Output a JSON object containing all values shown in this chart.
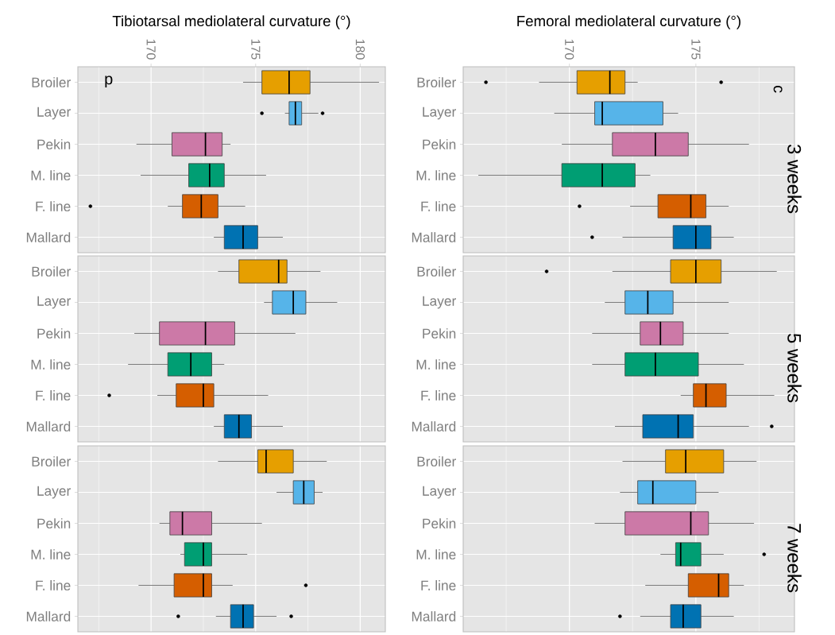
{
  "chart_data": [
    {
      "type": "box",
      "xlabel": "Tibiotarsal mediolateral curvature (°)",
      "orientation": "horizontal",
      "grid": true,
      "xlim": [
        166.5,
        181.2
      ],
      "xticks": [
        {
          "value": 167.5,
          "label": null
        },
        170,
        {
          "value": 172.5,
          "label": null
        },
        175,
        {
          "value": 177.5,
          "label": null
        },
        180
      ],
      "annotations": [
        "d"
      ],
      "categories": [
        "Broiler",
        "Layer",
        "Pekin",
        "M. line",
        "F. line",
        "Mallard"
      ],
      "colors": [
        "#e69f00",
        "#56b4e9",
        "#cc79a7",
        "#009e73",
        "#d55e00",
        "#0072b2"
      ],
      "boxes": [
        {
          "low": 174.4,
          "q1": 175.3,
          "median": 176.6,
          "q3": 177.6,
          "high": 180.9
        },
        {
          "low": 176.4,
          "q1": 176.6,
          "median": 176.9,
          "q3": 177.2,
          "high": 178.0,
          "outliers": [
            175.3,
            178.2
          ]
        },
        {
          "low": 169.3,
          "q1": 171.0,
          "median": 172.6,
          "q3": 173.4,
          "high": 173.8
        },
        {
          "low": 169.5,
          "q1": 171.8,
          "median": 172.8,
          "q3": 173.5,
          "high": 175.5
        },
        {
          "low": 170.8,
          "q1": 171.5,
          "median": 172.4,
          "q3": 173.2,
          "high": 174.5,
          "outliers": [
            167.1
          ]
        },
        {
          "low": 173.0,
          "q1": 173.5,
          "median": 174.4,
          "q3": 175.1,
          "high": 176.3
        }
      ]
    },
    {
      "type": "box",
      "xlabel": "Femoral mediolateral curvature (°)",
      "title": "3 weeks",
      "orientation": "horizontal",
      "grid": true,
      "xlim": [
        165.8,
        178.9
      ],
      "xticks": [
        {
          "value": 167.5,
          "label": null
        },
        170,
        {
          "value": 172.5,
          "label": null
        },
        175,
        {
          "value": 177.5,
          "label": null
        }
      ],
      "annotations": [
        "c"
      ],
      "categories": [
        "Broiler",
        "Layer",
        "Pekin",
        "M. line",
        "F. line",
        "Mallard"
      ],
      "colors": [
        "#e69f00",
        "#56b4e9",
        "#cc79a7",
        "#009e73",
        "#d55e00",
        "#0072b2"
      ],
      "boxes": [
        {
          "low": 168.8,
          "q1": 170.3,
          "median": 171.6,
          "q3": 172.2,
          "high": 172.7,
          "outliers": [
            166.7,
            176.0
          ]
        },
        {
          "low": 169.4,
          "q1": 171.0,
          "median": 171.3,
          "q3": 173.7,
          "high": 174.3
        },
        {
          "low": 169.7,
          "q1": 171.7,
          "median": 173.4,
          "q3": 174.7,
          "high": 177.1
        },
        {
          "low": 166.4,
          "q1": 169.7,
          "median": 171.3,
          "q3": 172.6,
          "high": 173.2
        },
        {
          "low": 172.4,
          "q1": 173.5,
          "median": 174.8,
          "q3": 175.4,
          "high": 176.3,
          "outliers": [
            170.4
          ]
        },
        {
          "low": 172.1,
          "q1": 174.1,
          "median": 175.0,
          "q3": 175.6,
          "high": 176.5,
          "outliers": [
            170.9
          ]
        }
      ]
    },
    {
      "type": "box",
      "orientation": "horizontal",
      "grid": true,
      "tick_labels": "y",
      "xlim": [
        166.5,
        181.2
      ],
      "xticks": [
        {
          "value": 167.5,
          "label": null
        },
        170,
        {
          "value": 172.5,
          "label": null
        },
        175,
        {
          "value": 177.5,
          "label": null
        },
        180
      ],
      "categories": [
        "Broiler",
        "Layer",
        "Pekin",
        "M. line",
        "F. line",
        "Mallard"
      ],
      "colors": [
        "#e69f00",
        "#56b4e9",
        "#cc79a7",
        "#009e73",
        "#d55e00",
        "#0072b2"
      ],
      "boxes": [
        {
          "low": 173.2,
          "q1": 174.2,
          "median": 176.1,
          "q3": 176.5,
          "high": 178.1
        },
        {
          "low": 175.4,
          "q1": 175.8,
          "median": 176.8,
          "q3": 177.4,
          "high": 178.9
        },
        {
          "low": 169.2,
          "q1": 170.4,
          "median": 172.6,
          "q3": 174.0,
          "high": 176.9
        },
        {
          "low": 168.9,
          "q1": 170.8,
          "median": 171.9,
          "q3": 172.9,
          "high": 173.5
        },
        {
          "low": 170.3,
          "q1": 171.2,
          "median": 172.5,
          "q3": 173.0,
          "high": 175.6,
          "outliers": [
            168.0
          ]
        },
        {
          "low": 173.0,
          "q1": 173.5,
          "median": 174.2,
          "q3": 174.8,
          "high": 176.3
        }
      ]
    },
    {
      "type": "box",
      "title": "5 weeks",
      "orientation": "horizontal",
      "grid": true,
      "tick_labels": "y",
      "xlim": [
        165.8,
        178.9
      ],
      "xticks": [
        {
          "value": 167.5,
          "label": null
        },
        170,
        {
          "value": 172.5,
          "label": null
        },
        175,
        {
          "value": 177.5,
          "label": null
        }
      ],
      "categories": [
        "Broiler",
        "Layer",
        "Pekin",
        "M. line",
        "F. line",
        "Mallard"
      ],
      "colors": [
        "#e69f00",
        "#56b4e9",
        "#cc79a7",
        "#009e73",
        "#d55e00",
        "#0072b2"
      ],
      "boxes": [
        {
          "low": 171.7,
          "q1": 174.0,
          "median": 175.0,
          "q3": 176.0,
          "high": 178.2,
          "outliers": [
            169.1
          ]
        },
        {
          "low": 171.4,
          "q1": 172.2,
          "median": 173.1,
          "q3": 174.1,
          "high": 176.3
        },
        {
          "low": 170.9,
          "q1": 172.8,
          "median": 173.6,
          "q3": 174.5,
          "high": 176.3
        },
        {
          "low": 170.9,
          "q1": 172.2,
          "median": 173.4,
          "q3": 175.1,
          "high": 176.9
        },
        {
          "low": 174.4,
          "q1": 174.9,
          "median": 175.4,
          "q3": 176.2,
          "high": 178.1
        },
        {
          "low": 171.8,
          "q1": 172.9,
          "median": 174.3,
          "q3": 174.9,
          "high": 177.1,
          "outliers": [
            178.0
          ]
        }
      ]
    },
    {
      "type": "box",
      "orientation": "horizontal",
      "grid": true,
      "tick_labels": "y",
      "xlim": [
        166.5,
        181.2
      ],
      "xticks": [
        {
          "value": 167.5,
          "label": null
        },
        170,
        {
          "value": 172.5,
          "label": null
        },
        175,
        {
          "value": 177.5,
          "label": null
        },
        180
      ],
      "categories": [
        "Broiler",
        "Layer",
        "Pekin",
        "M. line",
        "F. line",
        "Mallard"
      ],
      "colors": [
        "#e69f00",
        "#56b4e9",
        "#cc79a7",
        "#009e73",
        "#d55e00",
        "#0072b2"
      ],
      "boxes": [
        {
          "low": 173.2,
          "q1": 175.1,
          "median": 175.5,
          "q3": 176.8,
          "high": 178.4
        },
        {
          "low": 176.0,
          "q1": 176.8,
          "median": 177.3,
          "q3": 177.8,
          "high": 178.2
        },
        {
          "low": 170.4,
          "q1": 170.9,
          "median": 171.5,
          "q3": 172.9,
          "high": 175.3
        },
        {
          "low": 171.4,
          "q1": 171.6,
          "median": 172.5,
          "q3": 172.9,
          "high": 174.6
        },
        {
          "low": 169.4,
          "q1": 171.1,
          "median": 172.5,
          "q3": 172.9,
          "high": 173.9,
          "outliers": [
            177.4
          ]
        },
        {
          "low": 173.1,
          "q1": 173.8,
          "median": 174.4,
          "q3": 174.9,
          "high": 176.0,
          "outliers": [
            171.3,
            176.7
          ]
        }
      ]
    },
    {
      "type": "box",
      "title": "7 weeks",
      "orientation": "horizontal",
      "grid": true,
      "tick_labels": "y",
      "xlim": [
        165.8,
        178.9
      ],
      "xticks": [
        {
          "value": 167.5,
          "label": null
        },
        170,
        {
          "value": 172.5,
          "label": null
        },
        175,
        {
          "value": 177.5,
          "label": null
        }
      ],
      "categories": [
        "Broiler",
        "Layer",
        "Pekin",
        "M. line",
        "F. line",
        "Mallard"
      ],
      "colors": [
        "#e69f00",
        "#56b4e9",
        "#cc79a7",
        "#009e73",
        "#d55e00",
        "#0072b2"
      ],
      "boxes": [
        {
          "low": 172.1,
          "q1": 173.8,
          "median": 174.6,
          "q3": 176.1,
          "high": 177.4
        },
        {
          "low": 172.0,
          "q1": 172.7,
          "median": 173.3,
          "q3": 175.0,
          "high": 175.9
        },
        {
          "low": 171.0,
          "q1": 172.2,
          "median": 174.8,
          "q3": 175.5,
          "high": 177.3
        },
        {
          "low": 173.6,
          "q1": 174.2,
          "median": 174.4,
          "q3": 175.2,
          "high": 176.1,
          "outliers": [
            177.7
          ]
        },
        {
          "low": 173.0,
          "q1": 174.7,
          "median": 175.9,
          "q3": 176.3,
          "high": 176.9
        },
        {
          "low": 172.8,
          "q1": 174.0,
          "median": 174.5,
          "q3": 175.2,
          "high": 176.5,
          "outliers": [
            172.0
          ]
        }
      ]
    }
  ]
}
